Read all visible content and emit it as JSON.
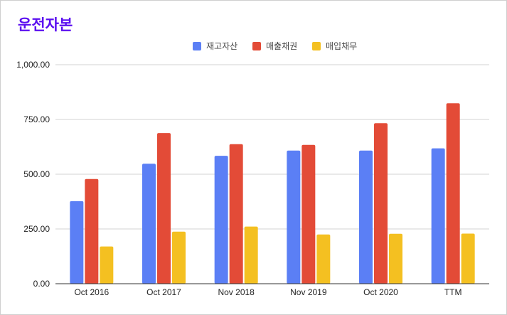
{
  "chart_data": {
    "type": "bar",
    "title": "운전자본",
    "categories": [
      "Oct 2016",
      "Oct 2017",
      "Nov 2018",
      "Nov 2019",
      "Oct 2020",
      "TTM"
    ],
    "series": [
      {
        "name": "재고자산",
        "color": "#5b7ff5",
        "values": [
          377,
          548,
          584,
          608,
          608,
          618
        ]
      },
      {
        "name": "매출채권",
        "color": "#e34b37",
        "values": [
          478,
          688,
          637,
          634,
          733,
          824
        ]
      },
      {
        "name": "매입채무",
        "color": "#f4c021",
        "values": [
          170,
          238,
          261,
          225,
          228,
          229
        ]
      }
    ],
    "yticks": [
      "0.00",
      "250.00",
      "500.00",
      "750.00",
      "1,000.00"
    ],
    "ylim": [
      0,
      1000
    ],
    "grid": true,
    "legend_position": "top"
  }
}
